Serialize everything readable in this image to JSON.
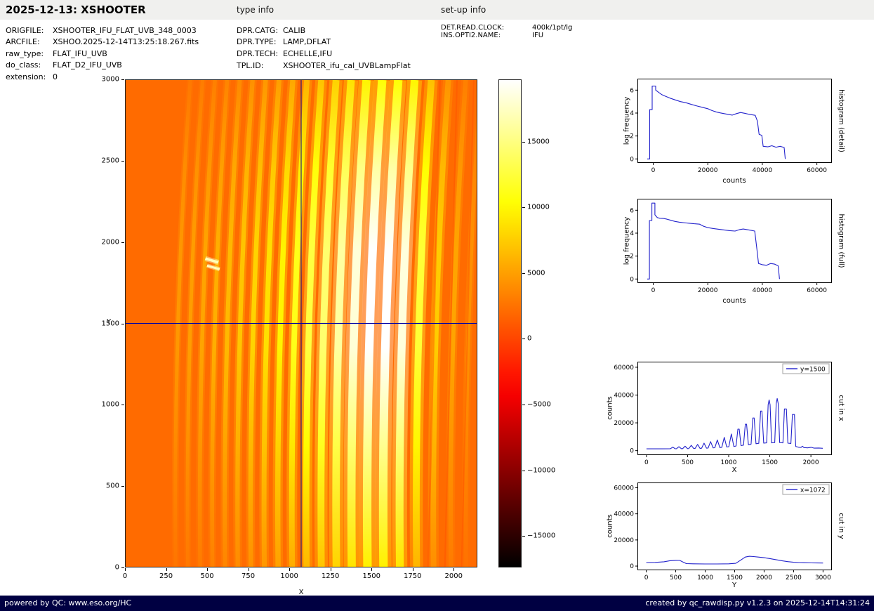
{
  "header": {
    "title": "2025-12-13: XSHOOTER",
    "type_info_label": "type info",
    "setup_info_label": "set-up info"
  },
  "metadata": {
    "left": [
      {
        "label": "ORIGFILE:",
        "value": "XSHOOTER_IFU_FLAT_UVB_348_0003"
      },
      {
        "label": "ARCFILE:",
        "value": "XSHOO.2025-12-14T13:25:18.267.fits"
      },
      {
        "label": "raw_type:",
        "value": "FLAT_IFU_UVB"
      },
      {
        "label": "do_class:",
        "value": "FLAT_D2_IFU_UVB"
      },
      {
        "label": "extension:",
        "value": "0"
      }
    ],
    "middle": [
      {
        "label": "DPR.CATG:",
        "value": "CALIB"
      },
      {
        "label": "DPR.TYPE:",
        "value": "LAMP,DFLAT"
      },
      {
        "label": "DPR.TECH:",
        "value": "ECHELLE,IFU"
      },
      {
        "label": "TPL.ID:",
        "value": "XSHOOTER_ifu_cal_UVBLampFlat"
      }
    ],
    "right": [
      {
        "label": "DET.READ.CLOCK:",
        "value": "400k/1pt/lg"
      },
      {
        "label": "INS.OPTI2.NAME:",
        "value": "IFU"
      }
    ]
  },
  "footer": {
    "left": "powered by QC: www.eso.org/HC",
    "right": "created by qc_rawdisp.py v1.2.3 on 2025-12-14T14:31:24"
  },
  "chart_data": [
    {
      "id": "raw_image",
      "type": "heatmap",
      "xlabel": "X",
      "ylabel": "Y",
      "xlim": [
        0,
        2144
      ],
      "ylim": [
        0,
        3000
      ],
      "xticks": [
        0,
        250,
        500,
        750,
        1000,
        1250,
        1500,
        1750,
        2000
      ],
      "yticks": [
        0,
        500,
        1000,
        1500,
        2000,
        2500,
        3000
      ],
      "colormap": "hot",
      "background_value": 2100,
      "colorbar": {
        "vmin": -17400,
        "vmax": 19750,
        "ticks": [
          15000,
          10000,
          5000,
          0,
          -5000,
          -10000,
          -15000
        ]
      },
      "crosshair": {
        "x": 1072,
        "y": 1500
      },
      "orders": [
        {
          "x_bottom": 305,
          "x_mid": 320,
          "x_top": 395,
          "width": 22,
          "intensity": 0.18
        },
        {
          "x_bottom": 380,
          "x_mid": 395,
          "x_top": 470,
          "width": 22,
          "intensity": 0.2
        },
        {
          "x_bottom": 455,
          "x_mid": 470,
          "x_top": 545,
          "width": 24,
          "intensity": 0.22
        },
        {
          "x_bottom": 530,
          "x_mid": 545,
          "x_top": 620,
          "width": 24,
          "intensity": 0.25
        },
        {
          "x_bottom": 607,
          "x_mid": 622,
          "x_top": 697,
          "width": 26,
          "intensity": 0.28
        },
        {
          "x_bottom": 685,
          "x_mid": 700,
          "x_top": 775,
          "width": 27,
          "intensity": 0.32
        },
        {
          "x_bottom": 765,
          "x_mid": 780,
          "x_top": 855,
          "width": 28,
          "intensity": 0.36
        },
        {
          "x_bottom": 847,
          "x_mid": 862,
          "x_top": 937,
          "width": 30,
          "intensity": 0.4
        },
        {
          "x_bottom": 931,
          "x_mid": 946,
          "x_top": 1021,
          "width": 32,
          "intensity": 0.46
        },
        {
          "x_bottom": 1017,
          "x_mid": 1032,
          "x_top": 1107,
          "width": 34,
          "intensity": 0.54
        },
        {
          "x_bottom": 1105,
          "x_mid": 1120,
          "x_top": 1195,
          "width": 38,
          "intensity": 0.62
        },
        {
          "x_bottom": 1195,
          "x_mid": 1210,
          "x_top": 1285,
          "width": 42,
          "intensity": 0.71
        },
        {
          "x_bottom": 1287,
          "x_mid": 1302,
          "x_top": 1377,
          "width": 46,
          "intensity": 0.81
        },
        {
          "x_bottom": 1381,
          "x_mid": 1396,
          "x_top": 1471,
          "width": 50,
          "intensity": 0.92
        },
        {
          "x_bottom": 1477,
          "x_mid": 1492,
          "x_top": 1567,
          "width": 52,
          "intensity": 1.0
        },
        {
          "x_bottom": 1575,
          "x_mid": 1590,
          "x_top": 1665,
          "width": 52,
          "intensity": 1.0
        },
        {
          "x_bottom": 1675,
          "x_mid": 1690,
          "x_top": 1765,
          "width": 48,
          "intensity": 0.93
        },
        {
          "x_bottom": 1777,
          "x_mid": 1792,
          "x_top": 1867,
          "width": 42,
          "intensity": 0.6
        },
        {
          "x_bottom": 1881,
          "x_mid": 1896,
          "x_top": 1971,
          "width": 34,
          "intensity": 0.34
        },
        {
          "x_bottom": 1987,
          "x_mid": 2002,
          "x_top": 2077,
          "width": 28,
          "intensity": 0.22
        },
        {
          "x_bottom": 2080,
          "x_mid": 2095,
          "x_top": 2170,
          "width": 24,
          "intensity": 0.16
        }
      ],
      "dark_lanes": [
        {
          "x_bottom": 1848,
          "x_top": 1920,
          "width": 10
        },
        {
          "x_bottom": 1950,
          "x_top": 2024,
          "width": 9
        },
        {
          "x_bottom": 2052,
          "x_top": 2126,
          "width": 8
        }
      ],
      "bright_dashes": [
        {
          "x1": 487,
          "y1": 1900,
          "x2": 566,
          "y2": 1876,
          "width": 16
        },
        {
          "x1": 497,
          "y1": 1856,
          "x2": 574,
          "y2": 1834,
          "width": 13
        }
      ]
    },
    {
      "id": "hist_detail",
      "type": "line",
      "label_right": "histogram (detail)",
      "xlabel": "counts",
      "ylabel": "log frequency",
      "color": "#2222cc",
      "xlim": [
        -5800,
        65500
      ],
      "ylim": [
        -0.35,
        7.0
      ],
      "xticks": [
        0,
        20000,
        40000,
        60000
      ],
      "yticks": [
        0,
        2,
        4,
        6
      ],
      "points": [
        [
          -2200,
          0
        ],
        [
          -1300,
          0
        ],
        [
          -1300,
          4.3
        ],
        [
          -400,
          4.3
        ],
        [
          -400,
          6.35
        ],
        [
          900,
          6.35
        ],
        [
          900,
          6.0
        ],
        [
          2000,
          5.8
        ],
        [
          3200,
          5.6
        ],
        [
          4600,
          5.45
        ],
        [
          6200,
          5.3
        ],
        [
          8000,
          5.15
        ],
        [
          10000,
          5.0
        ],
        [
          12000,
          4.9
        ],
        [
          14000,
          4.75
        ],
        [
          16000,
          4.62
        ],
        [
          18000,
          4.5
        ],
        [
          20000,
          4.38
        ],
        [
          21500,
          4.22
        ],
        [
          23000,
          4.1
        ],
        [
          24500,
          4.02
        ],
        [
          26000,
          3.95
        ],
        [
          27500,
          3.88
        ],
        [
          29000,
          3.82
        ],
        [
          30500,
          3.95
        ],
        [
          32000,
          4.05
        ],
        [
          33500,
          3.98
        ],
        [
          35000,
          3.9
        ],
        [
          36200,
          3.85
        ],
        [
          37400,
          3.8
        ],
        [
          38200,
          3.3
        ],
        [
          38800,
          2.15
        ],
        [
          39800,
          2.05
        ],
        [
          40300,
          1.1
        ],
        [
          42000,
          1.05
        ],
        [
          43500,
          1.15
        ],
        [
          45000,
          1.02
        ],
        [
          46500,
          1.1
        ],
        [
          48000,
          1.0
        ],
        [
          48400,
          0
        ]
      ]
    },
    {
      "id": "hist_full",
      "type": "line",
      "label_right": "histogram (full)",
      "xlabel": "counts",
      "ylabel": "log frequency",
      "color": "#2222cc",
      "xlim": [
        -5800,
        65500
      ],
      "ylim": [
        -0.35,
        7.0
      ],
      "xticks": [
        0,
        20000,
        40000,
        60000
      ],
      "yticks": [
        0,
        2,
        4,
        6
      ],
      "points": [
        [
          -2200,
          0
        ],
        [
          -1400,
          0
        ],
        [
          -1400,
          5.1
        ],
        [
          -500,
          5.1
        ],
        [
          -500,
          6.62
        ],
        [
          600,
          6.62
        ],
        [
          600,
          5.6
        ],
        [
          1500,
          5.35
        ],
        [
          2500,
          5.3
        ],
        [
          3800,
          5.28
        ],
        [
          5000,
          5.22
        ],
        [
          6500,
          5.12
        ],
        [
          8000,
          5.02
        ],
        [
          9500,
          4.96
        ],
        [
          11000,
          4.92
        ],
        [
          13000,
          4.87
        ],
        [
          15000,
          4.82
        ],
        [
          17000,
          4.78
        ],
        [
          18500,
          4.6
        ],
        [
          20000,
          4.48
        ],
        [
          22000,
          4.4
        ],
        [
          24000,
          4.34
        ],
        [
          26000,
          4.28
        ],
        [
          28000,
          4.22
        ],
        [
          30000,
          4.18
        ],
        [
          31500,
          4.3
        ],
        [
          33000,
          4.36
        ],
        [
          34500,
          4.3
        ],
        [
          36000,
          4.24
        ],
        [
          37200,
          4.18
        ],
        [
          38000,
          2.6
        ],
        [
          38600,
          1.35
        ],
        [
          40000,
          1.25
        ],
        [
          41500,
          1.2
        ],
        [
          43000,
          1.35
        ],
        [
          44500,
          1.3
        ],
        [
          45800,
          1.15
        ],
        [
          46300,
          0
        ]
      ]
    },
    {
      "id": "cut_x",
      "type": "line",
      "label_right": "cut in x",
      "legend": "y=1500",
      "xlabel": "X",
      "ylabel": "counts",
      "color": "#2222cc",
      "xlim": [
        -110,
        2255
      ],
      "ylim": [
        -3200,
        64000
      ],
      "xticks": [
        0,
        500,
        1000,
        1500,
        2000
      ],
      "yticks": [
        0,
        20000,
        40000,
        60000
      ],
      "points": [
        [
          0,
          1300
        ],
        [
          200,
          1300
        ],
        [
          290,
          1350
        ],
        [
          320,
          2500
        ],
        [
          350,
          1350
        ],
        [
          365,
          1400
        ],
        [
          395,
          2800
        ],
        [
          425,
          1400
        ],
        [
          440,
          1450
        ],
        [
          470,
          3200
        ],
        [
          500,
          1450
        ],
        [
          515,
          1500
        ],
        [
          545,
          3800
        ],
        [
          575,
          1550
        ],
        [
          592,
          1600
        ],
        [
          622,
          4500
        ],
        [
          652,
          1650
        ],
        [
          670,
          1750
        ],
        [
          700,
          5400
        ],
        [
          730,
          1800
        ],
        [
          750,
          1900
        ],
        [
          780,
          6500
        ],
        [
          810,
          2000
        ],
        [
          832,
          2100
        ],
        [
          862,
          7700
        ],
        [
          892,
          2200
        ],
        [
          916,
          2400
        ],
        [
          946,
          9600
        ],
        [
          976,
          2600
        ],
        [
          1002,
          2800
        ],
        [
          1032,
          12000
        ],
        [
          1062,
          3000
        ],
        [
          1090,
          3300
        ],
        [
          1112,
          15500
        ],
        [
          1128,
          15500
        ],
        [
          1150,
          3600
        ],
        [
          1180,
          4000
        ],
        [
          1202,
          19000
        ],
        [
          1218,
          19000
        ],
        [
          1240,
          4300
        ],
        [
          1272,
          4700
        ],
        [
          1294,
          23500
        ],
        [
          1310,
          23500
        ],
        [
          1332,
          5000
        ],
        [
          1366,
          5300
        ],
        [
          1388,
          28500
        ],
        [
          1404,
          28500
        ],
        [
          1426,
          5400
        ],
        [
          1462,
          5600
        ],
        [
          1480,
          33000
        ],
        [
          1492,
          36500
        ],
        [
          1504,
          33000
        ],
        [
          1522,
          5600
        ],
        [
          1560,
          5800
        ],
        [
          1578,
          34000
        ],
        [
          1590,
          37500
        ],
        [
          1602,
          34000
        ],
        [
          1620,
          5800
        ],
        [
          1660,
          5600
        ],
        [
          1678,
          30000
        ],
        [
          1702,
          30000
        ],
        [
          1720,
          5400
        ],
        [
          1756,
          5200
        ],
        [
          1775,
          26000
        ],
        [
          1800,
          26000
        ],
        [
          1815,
          3000
        ],
        [
          1850,
          2400
        ],
        [
          1880,
          2300
        ],
        [
          1896,
          3200
        ],
        [
          1915,
          2200
        ],
        [
          1960,
          2000
        ],
        [
          2002,
          2400
        ],
        [
          2040,
          1800
        ],
        [
          2095,
          1900
        ],
        [
          2144,
          1700
        ]
      ]
    },
    {
      "id": "cut_y",
      "type": "line",
      "label_right": "cut in y",
      "legend": "x=1072",
      "xlabel": "Y",
      "ylabel": "counts",
      "color": "#2222cc",
      "xlim": [
        -150,
        3150
      ],
      "ylim": [
        -3200,
        64000
      ],
      "xticks": [
        0,
        500,
        1000,
        1500,
        2000,
        2500,
        3000
      ],
      "yticks": [
        0,
        20000,
        40000,
        60000
      ],
      "points": [
        [
          0,
          2700
        ],
        [
          150,
          2800
        ],
        [
          300,
          3300
        ],
        [
          400,
          4100
        ],
        [
          500,
          4400
        ],
        [
          570,
          4300
        ],
        [
          620,
          3200
        ],
        [
          680,
          1900
        ],
        [
          800,
          1750
        ],
        [
          1000,
          1650
        ],
        [
          1200,
          1650
        ],
        [
          1400,
          1750
        ],
        [
          1520,
          2100
        ],
        [
          1600,
          4500
        ],
        [
          1680,
          6900
        ],
        [
          1750,
          7500
        ],
        [
          1820,
          7300
        ],
        [
          1900,
          6900
        ],
        [
          2000,
          6400
        ],
        [
          2100,
          5700
        ],
        [
          2200,
          4900
        ],
        [
          2300,
          4100
        ],
        [
          2400,
          3400
        ],
        [
          2500,
          2950
        ],
        [
          2600,
          2700
        ],
        [
          2700,
          2550
        ],
        [
          2800,
          2450
        ],
        [
          2900,
          2400
        ],
        [
          3000,
          2350
        ]
      ]
    }
  ]
}
